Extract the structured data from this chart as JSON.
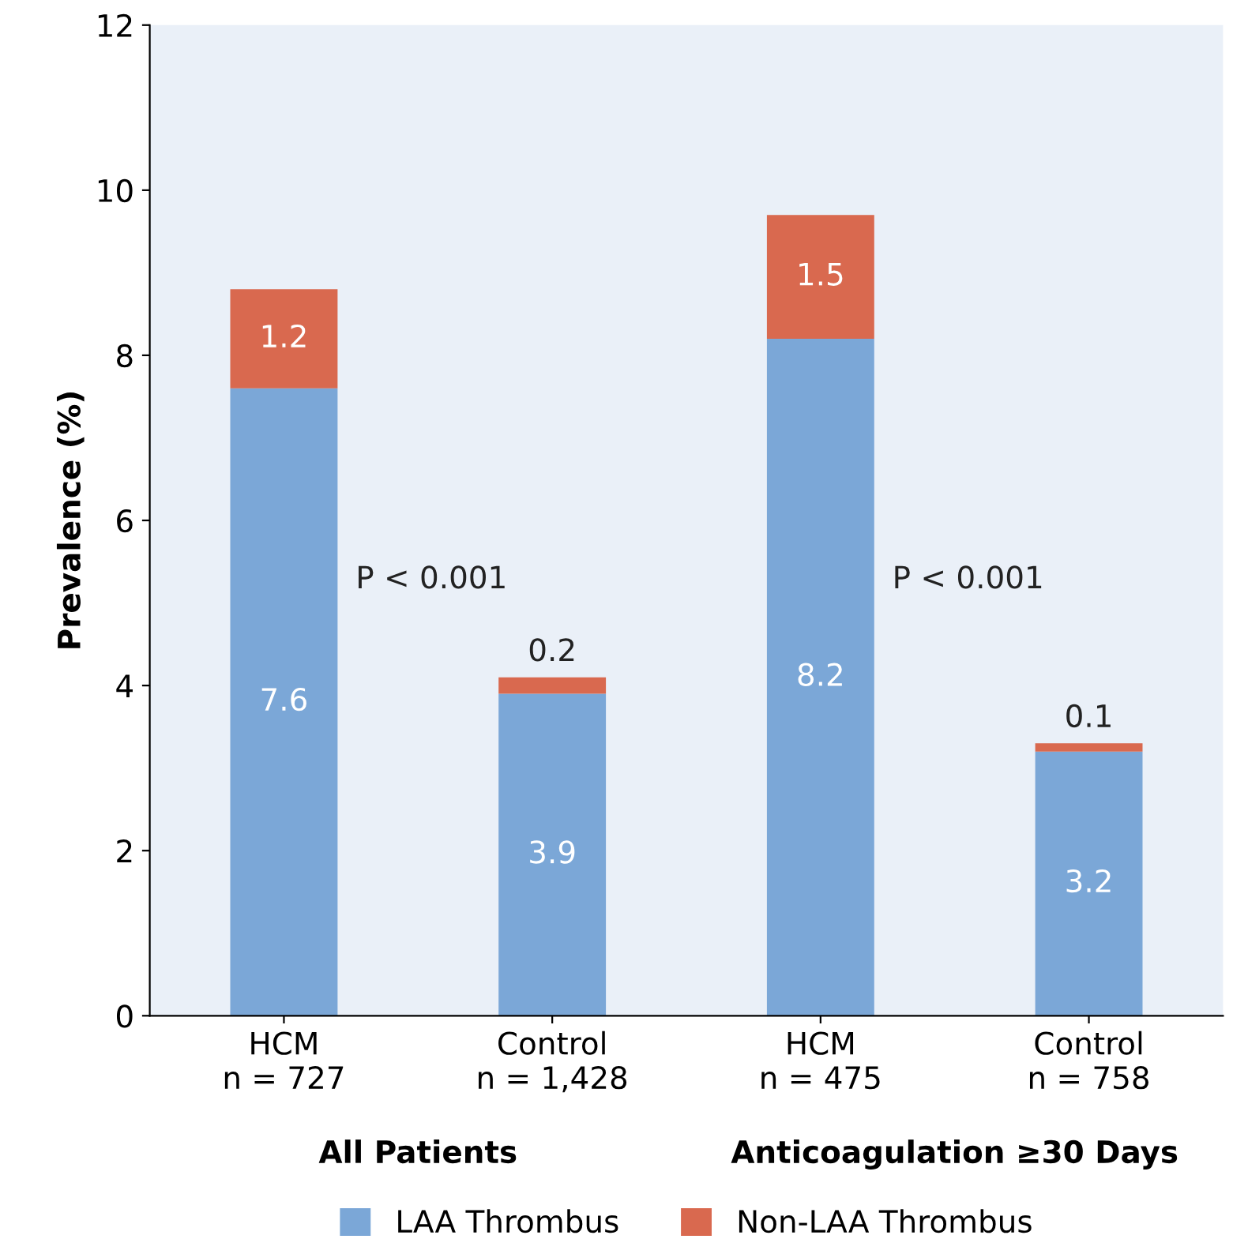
{
  "chart_data": {
    "type": "bar",
    "stacked": true,
    "ylabel": "Prevalence (%)",
    "categories": [
      "HCM\nn = 727",
      "Control\nn = 1,428",
      "HCM\nn = 475",
      "Control\nn = 758"
    ],
    "series": [
      {
        "name": "LAA Thrombus",
        "color": "#7ba7d7",
        "values": [
          7.6,
          3.9,
          8.2,
          3.2
        ]
      },
      {
        "name": "Non-LAA Thrombus",
        "color": "#d9694f",
        "values": [
          1.2,
          0.2,
          1.5,
          0.1
        ]
      }
    ],
    "ylim": [
      0,
      12
    ],
    "yticks": [
      0,
      2,
      4,
      6,
      8,
      10,
      12
    ],
    "data_labels": true,
    "grid": false,
    "legend": "bottom",
    "annotations": [
      "P < 0.001",
      "P < 0.001",
      "All Patients",
      "Anticoagulation ≥30 Days"
    ]
  }
}
